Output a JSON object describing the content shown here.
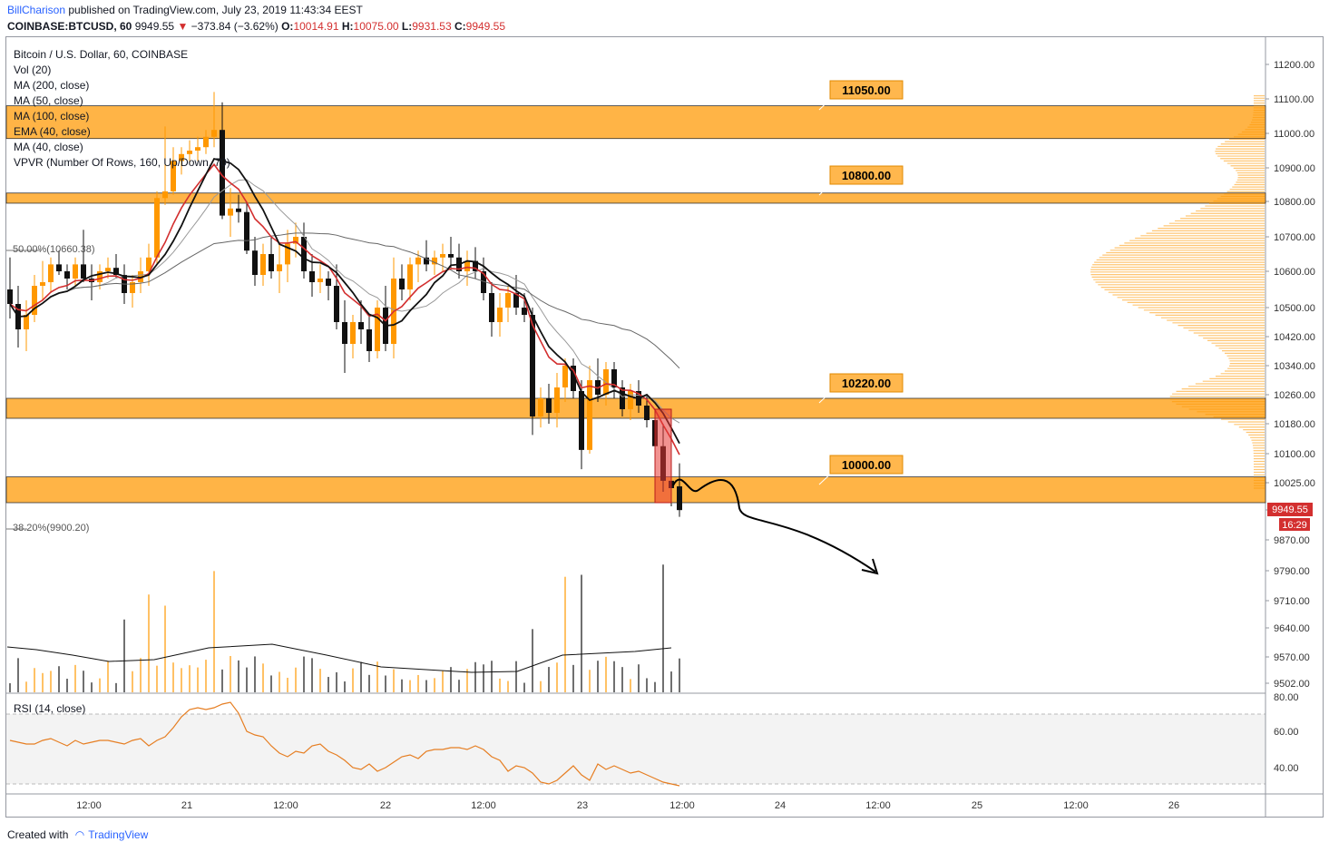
{
  "header": {
    "author": "BillCharison",
    "published": "published on TradingView.com, July 23, 2019 11:43:34 EEST",
    "symbol": "COINBASE:BTCUSD, 60",
    "last": "9949.55",
    "change": "−373.84 (−3.62%)",
    "open_label": "O:",
    "open": "10014.91",
    "high_label": "H:",
    "high": "10075.00",
    "low_label": "L:",
    "low": "9931.53",
    "close_label": "C:",
    "close": "9949.55"
  },
  "legend": {
    "title": "Bitcoin / U.S. Dollar, 60, COINBASE",
    "items": [
      "Vol (20)",
      "MA (200, close)",
      "MA (50, close)",
      "MA (100, close)",
      "EMA (40, close)",
      "MA (40, close)",
      "VPVR (Number Of Rows, 160, Up/Down, 70)"
    ]
  },
  "fib_levels": {
    "upper": "50.00%(10660.38)",
    "lower": "38.20%(9900.20)"
  },
  "rsi_label": "RSI (14, close)",
  "footer": {
    "created": "Created with",
    "brand": "TradingView"
  },
  "colors": {
    "zone": "#ffa726",
    "up": "#ff9800",
    "down": "#111111",
    "ema": "#d32f2f",
    "price_tag": "#d32f2f"
  },
  "price_tag": {
    "value": "9949.55",
    "time": "16:29"
  },
  "chart_data": {
    "type": "candlestick",
    "title": "Bitcoin / U.S. Dollar, 60, COINBASE",
    "y_ticks": [
      11200,
      11100,
      11000,
      10900,
      10800,
      10700,
      10600,
      10500,
      10420,
      10340,
      10260,
      10180,
      10100,
      10025,
      9950,
      9870,
      9790,
      9710,
      9640,
      9570,
      9502
    ],
    "y_tick_labels": [
      "11200.00",
      "11100.00",
      "11000.00",
      "10900.00",
      "10800.00",
      "10700.00",
      "10600.00",
      "10500.00",
      "10420.00",
      "10340.00",
      "10260.00",
      "10180.00",
      "10100.00",
      "10025.00",
      "9950.00",
      "9870.00",
      "9790.00",
      "9710.00",
      "9640.00",
      "9570.00",
      "9502.00"
    ],
    "x_ticks": [
      "12:00",
      "21",
      "12:00",
      "22",
      "12:00",
      "23",
      "12:00",
      "24",
      "12:00",
      "25",
      "12:00",
      "26"
    ],
    "rsi_ticks": [
      "80.00",
      "60.00",
      "40.00"
    ],
    "zones": [
      {
        "label": "11050.00",
        "low": 10985,
        "high": 11080
      },
      {
        "label": "10800.00",
        "low": 10795,
        "high": 10825
      },
      {
        "label": "10220.00",
        "low": 10195,
        "high": 10250
      },
      {
        "label": "10000.00",
        "low": 9970,
        "high": 10040
      }
    ],
    "candles": [
      [
        10550,
        10640,
        10470,
        10510
      ],
      [
        10510,
        10560,
        10390,
        10440
      ],
      [
        10440,
        10520,
        10380,
        10480
      ],
      [
        10480,
        10590,
        10460,
        10560
      ],
      [
        10560,
        10630,
        10520,
        10570
      ],
      [
        10570,
        10640,
        10540,
        10620
      ],
      [
        10620,
        10660,
        10590,
        10600
      ],
      [
        10600,
        10620,
        10550,
        10580
      ],
      [
        10580,
        10640,
        10560,
        10620
      ],
      [
        10620,
        10720,
        10570,
        10580
      ],
      [
        10580,
        10620,
        10520,
        10570
      ],
      [
        10570,
        10620,
        10550,
        10600
      ],
      [
        10600,
        10640,
        10580,
        10610
      ],
      [
        10610,
        10650,
        10580,
        10590
      ],
      [
        10590,
        10620,
        10510,
        10540
      ],
      [
        10540,
        10590,
        10500,
        10570
      ],
      [
        10570,
        10640,
        10540,
        10600
      ],
      [
        10600,
        10680,
        10560,
        10640
      ],
      [
        10640,
        10830,
        10620,
        10810
      ],
      [
        10810,
        11020,
        10790,
        10830
      ],
      [
        10830,
        10960,
        10820,
        10920
      ],
      [
        10920,
        10960,
        10880,
        10940
      ],
      [
        10940,
        10980,
        10910,
        10950
      ],
      [
        10950,
        10990,
        10920,
        10960
      ],
      [
        10960,
        11010,
        10940,
        10990
      ],
      [
        10990,
        11120,
        10960,
        11010
      ],
      [
        11010,
        11090,
        10750,
        10760
      ],
      [
        10760,
        10840,
        10700,
        10780
      ],
      [
        10780,
        10820,
        10740,
        10770
      ],
      [
        10770,
        10800,
        10650,
        10660
      ],
      [
        10660,
        10700,
        10560,
        10590
      ],
      [
        10590,
        10680,
        10560,
        10650
      ],
      [
        10650,
        10700,
        10580,
        10600
      ],
      [
        10600,
        10680,
        10540,
        10620
      ],
      [
        10620,
        10720,
        10570,
        10680
      ],
      [
        10680,
        10740,
        10640,
        10700
      ],
      [
        10700,
        10740,
        10580,
        10600
      ],
      [
        10600,
        10650,
        10530,
        10570
      ],
      [
        10570,
        10620,
        10540,
        10580
      ],
      [
        10580,
        10600,
        10520,
        10560
      ],
      [
        10560,
        10620,
        10440,
        10460
      ],
      [
        10460,
        10520,
        10320,
        10400
      ],
      [
        10400,
        10480,
        10360,
        10460
      ],
      [
        10460,
        10520,
        10400,
        10440
      ],
      [
        10440,
        10480,
        10350,
        10380
      ],
      [
        10380,
        10520,
        10360,
        10500
      ],
      [
        10500,
        10560,
        10380,
        10400
      ],
      [
        10400,
        10640,
        10360,
        10580
      ],
      [
        10580,
        10620,
        10520,
        10550
      ],
      [
        10550,
        10640,
        10520,
        10620
      ],
      [
        10620,
        10660,
        10570,
        10640
      ],
      [
        10640,
        10690,
        10600,
        10620
      ],
      [
        10620,
        10660,
        10590,
        10640
      ],
      [
        10640,
        10680,
        10600,
        10650
      ],
      [
        10650,
        10700,
        10610,
        10640
      ],
      [
        10640,
        10680,
        10580,
        10600
      ],
      [
        10600,
        10660,
        10560,
        10630
      ],
      [
        10630,
        10670,
        10580,
        10600
      ],
      [
        10600,
        10640,
        10520,
        10540
      ],
      [
        10540,
        10570,
        10420,
        10460
      ],
      [
        10460,
        10540,
        10420,
        10500
      ],
      [
        10500,
        10560,
        10460,
        10540
      ],
      [
        10540,
        10590,
        10480,
        10500
      ],
      [
        10500,
        10540,
        10460,
        10480
      ],
      [
        10480,
        10500,
        10150,
        10200
      ],
      [
        10200,
        10280,
        10170,
        10250
      ],
      [
        10250,
        10290,
        10180,
        10210
      ],
      [
        10210,
        10320,
        10170,
        10280
      ],
      [
        10280,
        10360,
        10240,
        10340
      ],
      [
        10340,
        10360,
        10250,
        10270
      ],
      [
        10270,
        10300,
        10060,
        10110
      ],
      [
        10110,
        10340,
        10100,
        10300
      ],
      [
        10300,
        10360,
        10240,
        10260
      ],
      [
        10260,
        10350,
        10230,
        10330
      ],
      [
        10330,
        10350,
        10250,
        10280
      ],
      [
        10280,
        10300,
        10200,
        10220
      ],
      [
        10220,
        10290,
        10190,
        10270
      ],
      [
        10270,
        10300,
        10210,
        10230
      ],
      [
        10230,
        10260,
        10170,
        10190
      ],
      [
        10190,
        10220,
        10080,
        10120
      ],
      [
        10120,
        10180,
        10000,
        10030
      ],
      [
        10030,
        10040,
        9960,
        10010
      ],
      [
        10014.91,
        10075,
        9931.53,
        9949.55
      ]
    ],
    "rsi": [
      55,
      54,
      53,
      53,
      55,
      56,
      54,
      52,
      55,
      53,
      54,
      55,
      55,
      54,
      53,
      55,
      56,
      52,
      55,
      57,
      62,
      68,
      72,
      73,
      72,
      73,
      75,
      76,
      70,
      60,
      58,
      57,
      52,
      48,
      46,
      49,
      48,
      52,
      53,
      49,
      47,
      44,
      40,
      39,
      42,
      38,
      40,
      43,
      46,
      47,
      45,
      49,
      50,
      50,
      51,
      51,
      50,
      52,
      50,
      46,
      44,
      38,
      41,
      40,
      37,
      32,
      31,
      33,
      37,
      41,
      36,
      33,
      42,
      39,
      41,
      39,
      37,
      38,
      36,
      34,
      32,
      31,
      30
    ]
  }
}
